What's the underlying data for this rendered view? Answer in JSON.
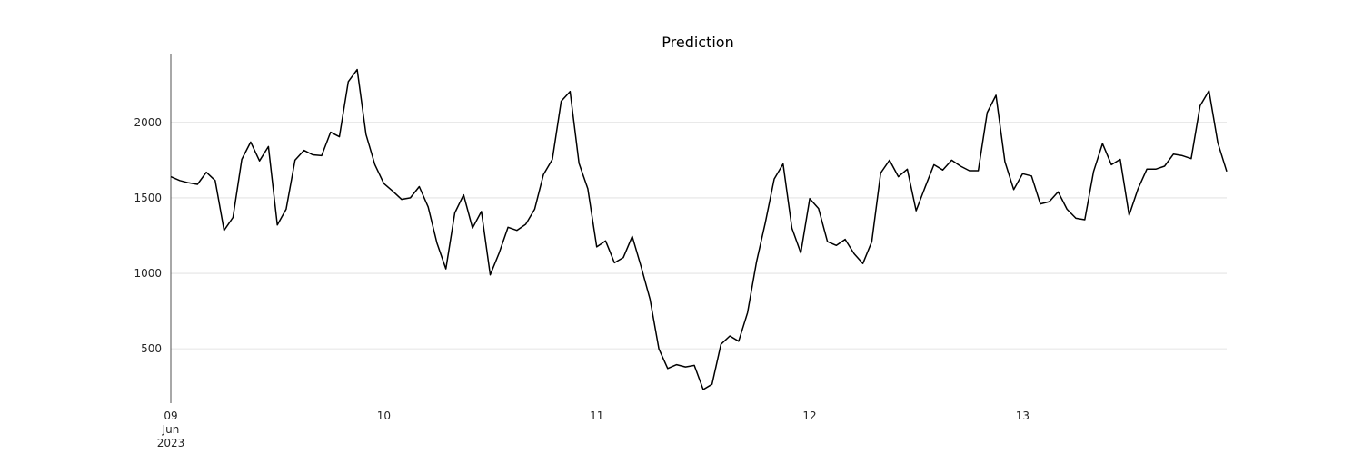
{
  "chart_data": {
    "type": "line",
    "title": "Prediction",
    "xlabel": "",
    "ylabel": "",
    "x_start": "2023-06-09T00:00",
    "x_end": "2023-06-13T23:00",
    "step_hours": 1,
    "ylim": [
      140,
      2450
    ],
    "yticks": [
      500,
      1000,
      1500,
      2000
    ],
    "xticks": [
      {
        "date": "2023-06-09",
        "labels": [
          "09",
          "Jun",
          "2023"
        ]
      },
      {
        "date": "2023-06-10",
        "labels": [
          "10"
        ]
      },
      {
        "date": "2023-06-11",
        "labels": [
          "11"
        ]
      },
      {
        "date": "2023-06-12",
        "labels": [
          "12"
        ]
      },
      {
        "date": "2023-06-13",
        "labels": [
          "13"
        ]
      }
    ],
    "grid": "y",
    "series": [
      {
        "color": "#000000",
        "values": [
          1640,
          1615,
          1600,
          1590,
          1670,
          1615,
          1285,
          1370,
          1755,
          1870,
          1745,
          1840,
          1320,
          1425,
          1750,
          1815,
          1785,
          1780,
          1935,
          1905,
          2270,
          2350,
          1920,
          1720,
          1595,
          1545,
          1490,
          1500,
          1575,
          1440,
          1200,
          1030,
          1400,
          1520,
          1300,
          1410,
          990,
          1135,
          1305,
          1285,
          1325,
          1425,
          1655,
          1755,
          2140,
          2205,
          1730,
          1560,
          1175,
          1215,
          1070,
          1105,
          1245,
          1045,
          830,
          500,
          370,
          395,
          380,
          390,
          230,
          265,
          530,
          585,
          550,
          740,
          1075,
          1335,
          1625,
          1725,
          1300,
          1135,
          1495,
          1430,
          1210,
          1185,
          1225,
          1130,
          1065,
          1210,
          1665,
          1750,
          1640,
          1690,
          1415,
          1570,
          1720,
          1685,
          1750,
          1710,
          1680,
          1680,
          2065,
          2180,
          1740,
          1555,
          1660,
          1645,
          1460,
          1475,
          1540,
          1425,
          1365,
          1355,
          1675,
          1860,
          1720,
          1755,
          1385,
          1560,
          1690,
          1690,
          1710,
          1790,
          1780,
          1760,
          2110,
          2210,
          1865,
          1675
        ]
      }
    ]
  }
}
